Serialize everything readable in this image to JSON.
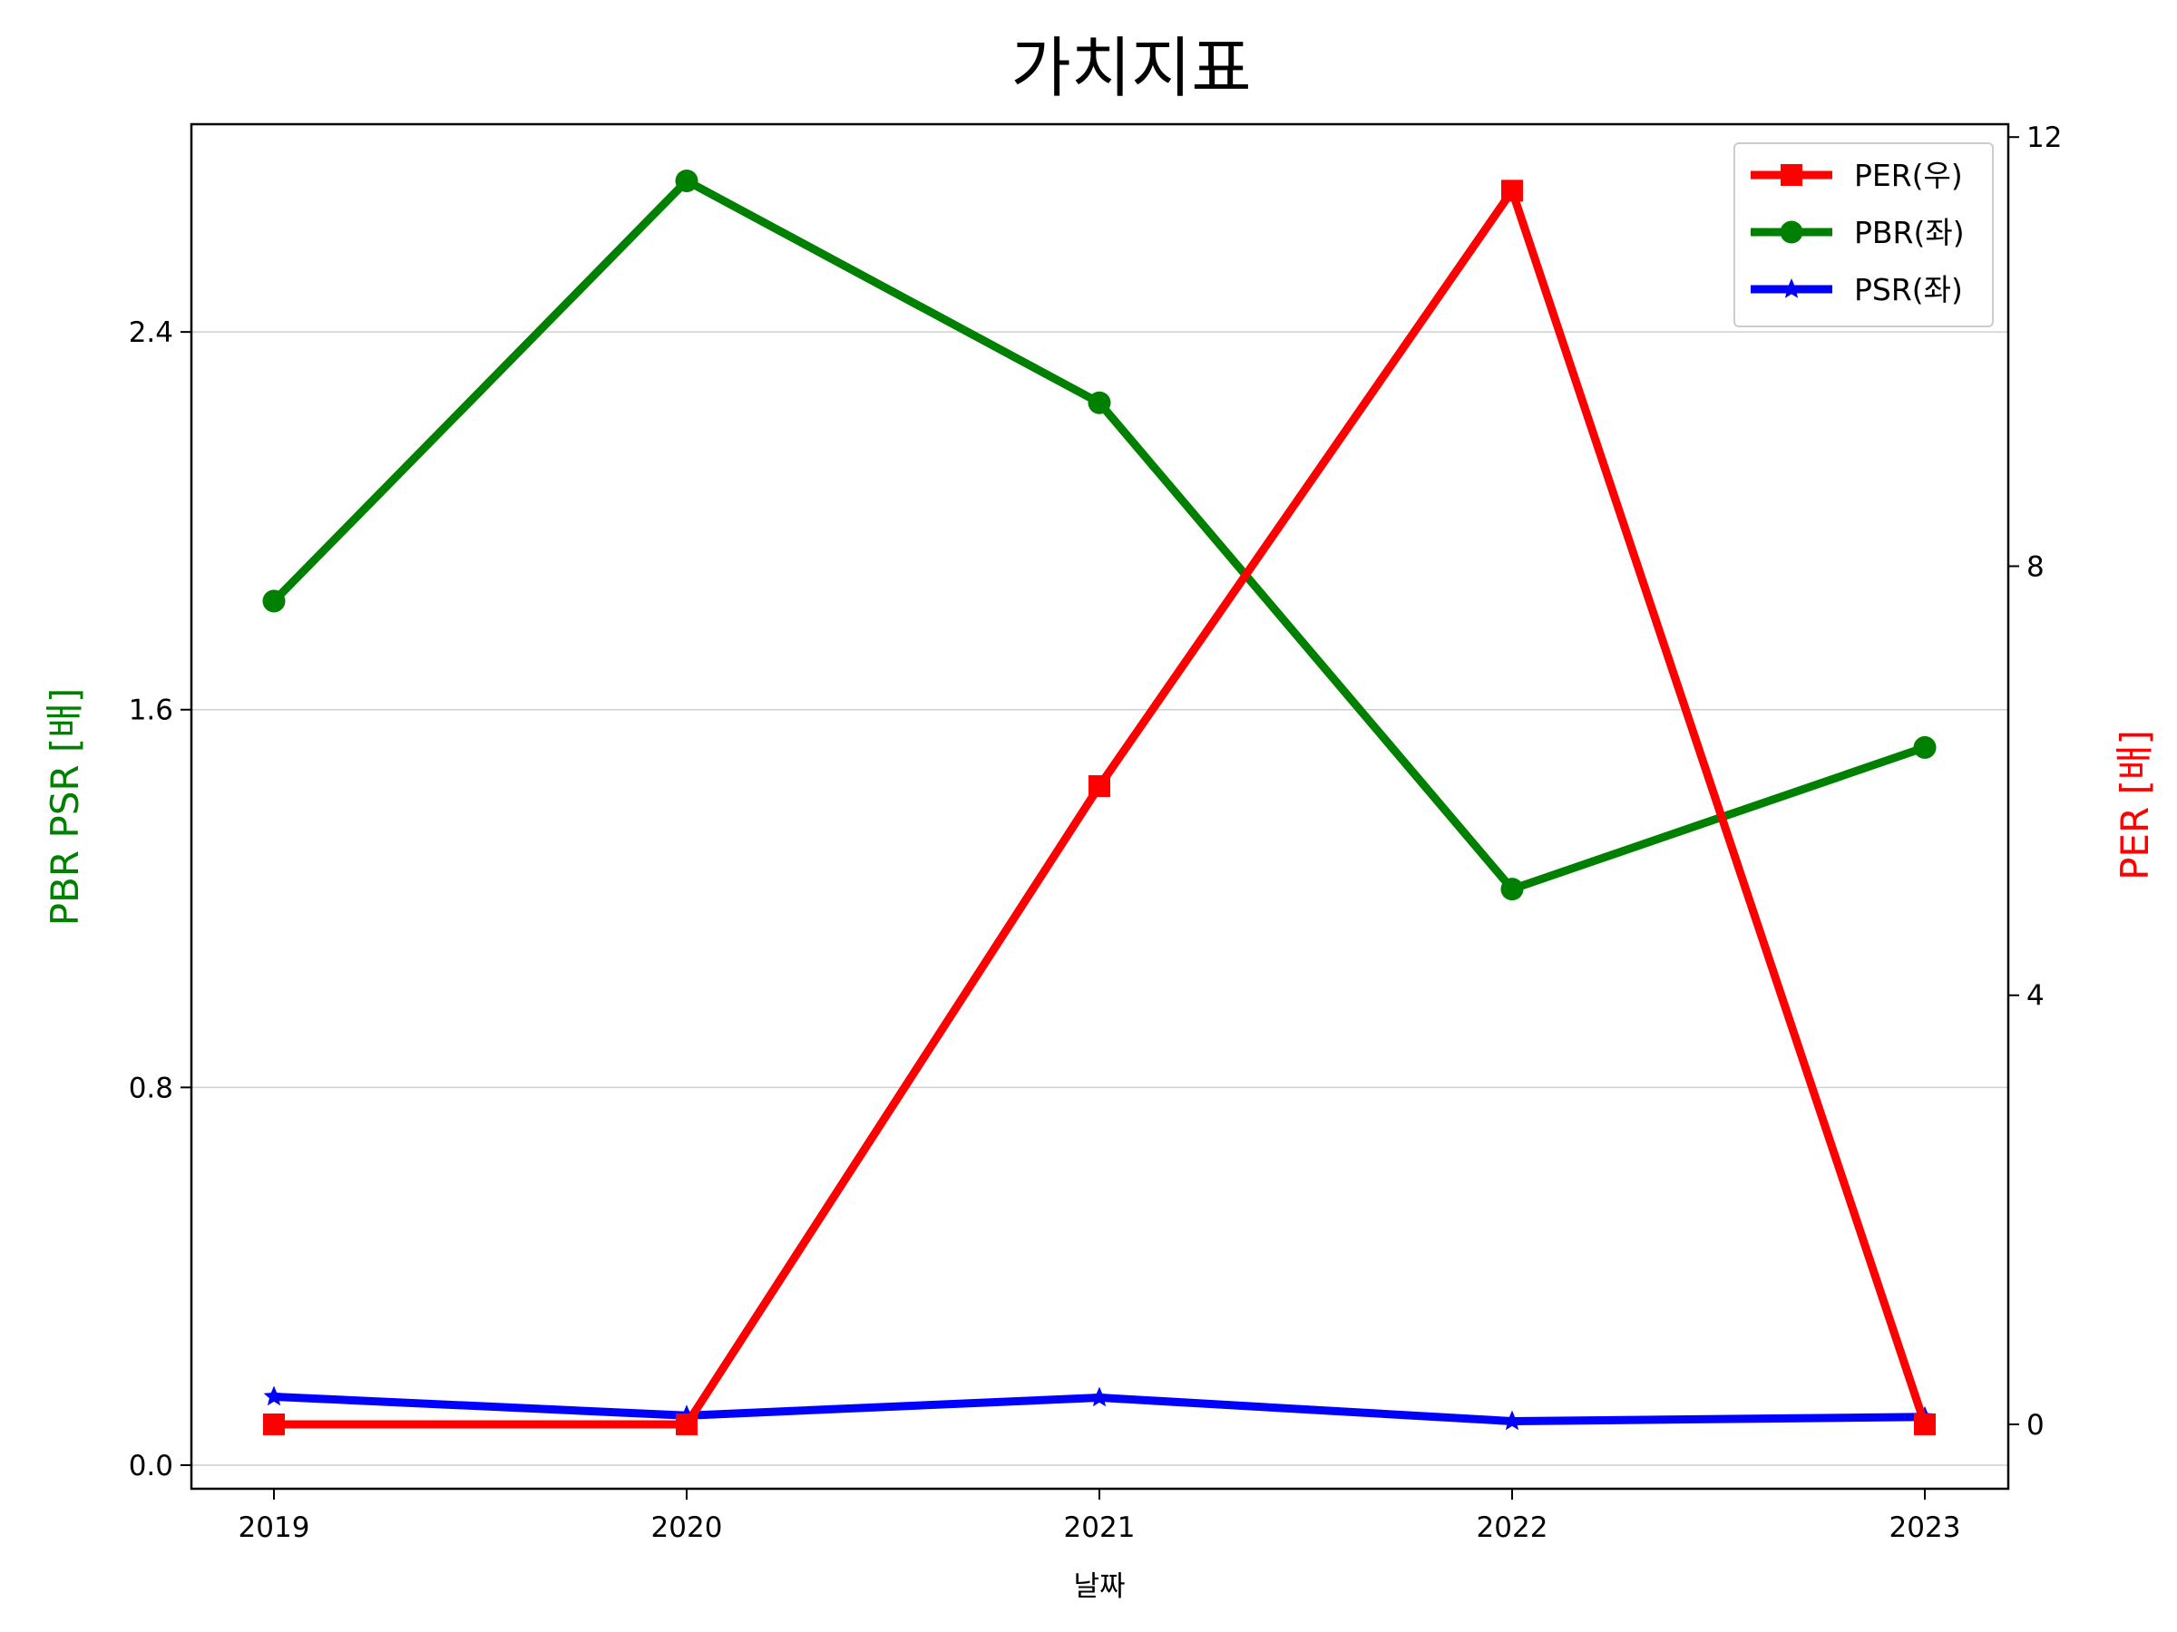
{
  "chart_data": {
    "type": "line",
    "title": "가치지표",
    "xlabel": "날짜",
    "ylabel_left": "PBR PSR [배]",
    "ylabel_right": "PER [배]",
    "categories": [
      "2019",
      "2020",
      "2021",
      "2022",
      "2023"
    ],
    "ylim_left": [
      -0.05,
      2.84
    ],
    "ylim_right": [
      -0.6,
      12.12
    ],
    "yticks_left": [
      0.0,
      0.8,
      1.6,
      2.4
    ],
    "ytick_labels_left": [
      "0.0",
      "0.8",
      "1.6",
      "2.4"
    ],
    "yticks_right": [
      0,
      4,
      8,
      12
    ],
    "ytick_labels_right": [
      "0",
      "4",
      "8",
      "12"
    ],
    "grid": "horizontal (left axis)",
    "legend_position": "top-right",
    "series": [
      {
        "name": "PER(우)",
        "axis": "right",
        "color": "#ff0000",
        "marker": "square",
        "values": [
          0.0,
          0.0,
          5.95,
          11.5,
          0.0
        ]
      },
      {
        "name": "PBR(좌)",
        "axis": "left",
        "color": "#008000",
        "marker": "circle",
        "values": [
          1.83,
          2.72,
          2.25,
          1.22,
          1.52
        ]
      },
      {
        "name": "PSR(좌)",
        "axis": "left",
        "color": "#0000ff",
        "marker": "star",
        "values": [
          0.145,
          0.105,
          0.143,
          0.093,
          0.102
        ]
      }
    ],
    "colors": {
      "left_axis_label": "#008000",
      "right_axis_label": "#ff0000",
      "grid": "#d0d0d0"
    }
  }
}
